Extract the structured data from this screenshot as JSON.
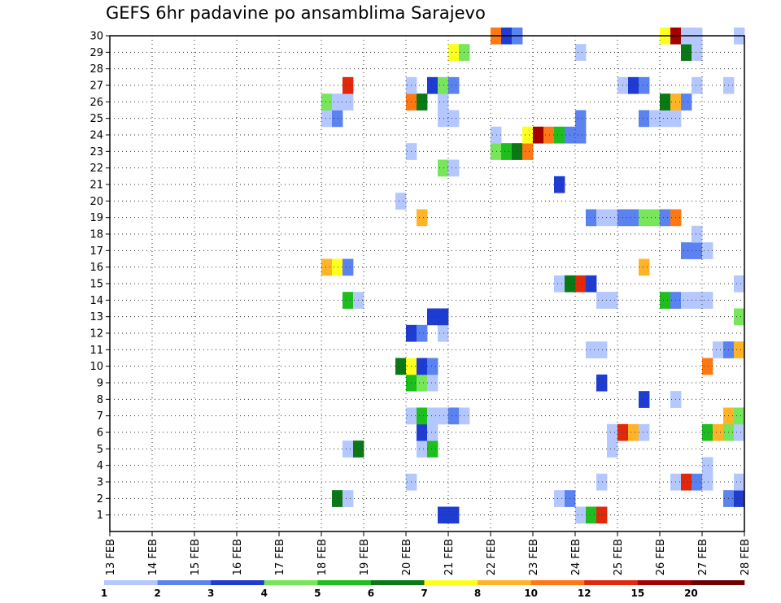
{
  "chart_data": {
    "type": "heatmap",
    "title": "GEFS 6hr padavine po ansamblima Sarajevo",
    "xlabel": "",
    "ylabel": "",
    "x_ticks": [
      "13 FEB",
      "14 FEB",
      "15 FEB",
      "16 FEB",
      "17 FEB",
      "18 FEB",
      "19 FEB",
      "20 FEB",
      "21 FEB",
      "22 FEB",
      "23 FEB",
      "24 FEB",
      "25 FEB",
      "26 FEB",
      "27 FEB",
      "28 FEB"
    ],
    "y_ticks": [
      "1",
      "2",
      "3",
      "4",
      "5",
      "6",
      "7",
      "8",
      "9",
      "10",
      "11",
      "12",
      "13",
      "14",
      "15",
      "16",
      "17",
      "18",
      "19",
      "20",
      "21",
      "22",
      "23",
      "24",
      "25",
      "26",
      "27",
      "28",
      "29",
      "30"
    ],
    "x_range": [
      "13 FEB 00UTC",
      "28 FEB 00UTC"
    ],
    "y_range": [
      0,
      30
    ],
    "time_step_hours": 6,
    "grid": "dotted",
    "colorbar": {
      "placement": "bottom",
      "labels": [
        "1",
        "2",
        "3",
        "4",
        "5",
        "6",
        "7",
        "8",
        "10",
        "12",
        "15",
        "20"
      ],
      "colors": [
        "#b4c8ff",
        "#5a82f0",
        "#1e3cd2",
        "#78e65a",
        "#1ebe1e",
        "#0a7814",
        "#ffff1e",
        "#ffb428",
        "#ff7814",
        "#e1280a",
        "#a50000",
        "#6e0000"
      ]
    },
    "cells": [
      [
        20.75,
        0,
        "#1e3cd2"
      ],
      [
        21.0,
        0,
        "#1e3cd2"
      ],
      [
        24.0,
        0,
        "#b4c8ff"
      ],
      [
        24.25,
        0,
        "#1ebe1e"
      ],
      [
        24.5,
        0,
        "#e1280a"
      ],
      [
        18.25,
        1,
        "#0a7814"
      ],
      [
        18.5,
        1,
        "#b4c8ff"
      ],
      [
        23.5,
        1,
        "#b4c8ff"
      ],
      [
        23.75,
        1,
        "#5a82f0"
      ],
      [
        27.5,
        1,
        "#5a82f0"
      ],
      [
        27.75,
        1,
        "#1e3cd2"
      ],
      [
        20.0,
        2,
        "#b4c8ff"
      ],
      [
        24.5,
        2,
        "#b4c8ff"
      ],
      [
        26.25,
        2,
        "#b4c8ff"
      ],
      [
        26.5,
        2,
        "#e1280a"
      ],
      [
        26.75,
        2,
        "#5a82f0"
      ],
      [
        27.0,
        2,
        "#b4c8ff"
      ],
      [
        27.75,
        2,
        "#b4c8ff"
      ],
      [
        27.0,
        3,
        "#b4c8ff"
      ],
      [
        18.5,
        4,
        "#b4c8ff"
      ],
      [
        18.75,
        4,
        "#0a7814"
      ],
      [
        20.25,
        4,
        "#b4c8ff"
      ],
      [
        20.5,
        4,
        "#1ebe1e"
      ],
      [
        24.75,
        4,
        "#b4c8ff"
      ],
      [
        20.25,
        5,
        "#1e3cd2"
      ],
      [
        20.5,
        5,
        "#b4c8ff"
      ],
      [
        24.75,
        5,
        "#b4c8ff"
      ],
      [
        25.0,
        5,
        "#e1280a"
      ],
      [
        25.25,
        5,
        "#ffb428"
      ],
      [
        25.5,
        5,
        "#b4c8ff"
      ],
      [
        27.0,
        5,
        "#1ebe1e"
      ],
      [
        27.25,
        5,
        "#ffb428"
      ],
      [
        27.5,
        5,
        "#78e65a"
      ],
      [
        27.75,
        5,
        "#b4c8ff"
      ],
      [
        20.0,
        6,
        "#b4c8ff"
      ],
      [
        20.25,
        6,
        "#1ebe1e"
      ],
      [
        20.5,
        6,
        "#b4c8ff"
      ],
      [
        20.75,
        6,
        "#b4c8ff"
      ],
      [
        21.0,
        6,
        "#5a82f0"
      ],
      [
        21.25,
        6,
        "#b4c8ff"
      ],
      [
        27.5,
        6,
        "#ffb428"
      ],
      [
        27.75,
        6,
        "#78e65a"
      ],
      [
        25.5,
        7,
        "#1e3cd2"
      ],
      [
        26.25,
        7,
        "#b4c8ff"
      ],
      [
        20.0,
        8,
        "#1ebe1e"
      ],
      [
        20.25,
        8,
        "#78e65a"
      ],
      [
        20.5,
        8,
        "#b4c8ff"
      ],
      [
        24.5,
        8,
        "#1e3cd2"
      ],
      [
        19.75,
        9,
        "#0a7814"
      ],
      [
        20.0,
        9,
        "#ffff1e"
      ],
      [
        20.25,
        9,
        "#1e3cd2"
      ],
      [
        20.5,
        9,
        "#5a82f0"
      ],
      [
        27.0,
        9,
        "#ff7814"
      ],
      [
        24.25,
        10,
        "#b4c8ff"
      ],
      [
        24.5,
        10,
        "#b4c8ff"
      ],
      [
        27.25,
        10,
        "#b4c8ff"
      ],
      [
        27.5,
        10,
        "#5a82f0"
      ],
      [
        27.75,
        10,
        "#ffb428"
      ],
      [
        20.0,
        11,
        "#1e3cd2"
      ],
      [
        20.25,
        11,
        "#5a82f0"
      ],
      [
        20.75,
        11,
        "#b4c8ff"
      ],
      [
        20.5,
        12,
        "#1e3cd2"
      ],
      [
        20.75,
        12,
        "#1e3cd2"
      ],
      [
        27.75,
        12,
        "#78e65a"
      ],
      [
        18.5,
        13,
        "#1ebe1e"
      ],
      [
        18.75,
        13,
        "#b4c8ff"
      ],
      [
        24.5,
        13,
        "#b4c8ff"
      ],
      [
        24.75,
        13,
        "#b4c8ff"
      ],
      [
        26.0,
        13,
        "#1ebe1e"
      ],
      [
        26.25,
        13,
        "#5a82f0"
      ],
      [
        26.5,
        13,
        "#b4c8ff"
      ],
      [
        26.75,
        13,
        "#b4c8ff"
      ],
      [
        27.0,
        13,
        "#b4c8ff"
      ],
      [
        23.5,
        14,
        "#b4c8ff"
      ],
      [
        23.75,
        14,
        "#0a7814"
      ],
      [
        24.0,
        14,
        "#e1280a"
      ],
      [
        24.25,
        14,
        "#1e3cd2"
      ],
      [
        27.75,
        14,
        "#b4c8ff"
      ],
      [
        18.0,
        15,
        "#ffb428"
      ],
      [
        18.25,
        15,
        "#ffff1e"
      ],
      [
        18.5,
        15,
        "#5a82f0"
      ],
      [
        25.5,
        15,
        "#ffb428"
      ],
      [
        26.5,
        16,
        "#5a82f0"
      ],
      [
        26.75,
        16,
        "#5a82f0"
      ],
      [
        27.0,
        16,
        "#b4c8ff"
      ],
      [
        26.75,
        17,
        "#b4c8ff"
      ],
      [
        20.25,
        18,
        "#ffb428"
      ],
      [
        24.25,
        18,
        "#5a82f0"
      ],
      [
        24.5,
        18,
        "#b4c8ff"
      ],
      [
        24.75,
        18,
        "#b4c8ff"
      ],
      [
        25.0,
        18,
        "#5a82f0"
      ],
      [
        25.25,
        18,
        "#5a82f0"
      ],
      [
        25.5,
        18,
        "#78e65a"
      ],
      [
        25.75,
        18,
        "#78e65a"
      ],
      [
        26.0,
        18,
        "#5a82f0"
      ],
      [
        26.25,
        18,
        "#ff7814"
      ],
      [
        19.75,
        19,
        "#b4c8ff"
      ],
      [
        23.5,
        20,
        "#1e3cd2"
      ],
      [
        20.75,
        21,
        "#78e65a"
      ],
      [
        21.0,
        21,
        "#b4c8ff"
      ],
      [
        20.0,
        22,
        "#b4c8ff"
      ],
      [
        22.0,
        22,
        "#78e65a"
      ],
      [
        22.25,
        22,
        "#1ebe1e"
      ],
      [
        22.5,
        22,
        "#0a7814"
      ],
      [
        22.75,
        22,
        "#ff7814"
      ],
      [
        22.0,
        23,
        "#b4c8ff"
      ],
      [
        22.75,
        23,
        "#ffff1e"
      ],
      [
        23.0,
        23,
        "#a50000"
      ],
      [
        23.25,
        23,
        "#ff7814"
      ],
      [
        23.5,
        23,
        "#1ebe1e"
      ],
      [
        23.75,
        23,
        "#5a82f0"
      ],
      [
        24.0,
        23,
        "#5a82f0"
      ],
      [
        18.0,
        24,
        "#b4c8ff"
      ],
      [
        18.25,
        24,
        "#5a82f0"
      ],
      [
        20.75,
        24,
        "#b4c8ff"
      ],
      [
        21.0,
        24,
        "#b4c8ff"
      ],
      [
        24.0,
        24,
        "#5a82f0"
      ],
      [
        25.5,
        24,
        "#5a82f0"
      ],
      [
        25.75,
        24,
        "#b4c8ff"
      ],
      [
        26.0,
        24,
        "#b4c8ff"
      ],
      [
        26.25,
        24,
        "#b4c8ff"
      ],
      [
        18.0,
        25,
        "#78e65a"
      ],
      [
        18.25,
        25,
        "#b4c8ff"
      ],
      [
        18.5,
        25,
        "#b4c8ff"
      ],
      [
        20.0,
        25,
        "#ff7814"
      ],
      [
        20.25,
        25,
        "#0a7814"
      ],
      [
        20.75,
        25,
        "#b4c8ff"
      ],
      [
        26.0,
        25,
        "#0a7814"
      ],
      [
        26.25,
        25,
        "#ffb428"
      ],
      [
        26.5,
        25,
        "#5a82f0"
      ],
      [
        18.5,
        26,
        "#e1280a"
      ],
      [
        20.0,
        26,
        "#b4c8ff"
      ],
      [
        20.5,
        26,
        "#1e3cd2"
      ],
      [
        20.75,
        26,
        "#78e65a"
      ],
      [
        21.0,
        26,
        "#5a82f0"
      ],
      [
        25.0,
        26,
        "#b4c8ff"
      ],
      [
        25.25,
        26,
        "#1e3cd2"
      ],
      [
        25.5,
        26,
        "#5a82f0"
      ],
      [
        26.75,
        26,
        "#b4c8ff"
      ],
      [
        27.5,
        26,
        "#b4c8ff"
      ],
      [
        21.0,
        28,
        "#ffff1e"
      ],
      [
        21.25,
        28,
        "#78e65a"
      ],
      [
        24.0,
        28,
        "#b4c8ff"
      ],
      [
        26.5,
        28,
        "#0a7814"
      ],
      [
        26.75,
        28,
        "#b4c8ff"
      ],
      [
        22.0,
        29,
        "#ff7814"
      ],
      [
        22.25,
        29,
        "#1e3cd2"
      ],
      [
        22.5,
        29,
        "#5a82f0"
      ],
      [
        26.0,
        29,
        "#ffff1e"
      ],
      [
        26.25,
        29,
        "#a50000"
      ],
      [
        26.5,
        29,
        "#b4c8ff"
      ],
      [
        26.75,
        29,
        "#b4c8ff"
      ],
      [
        27.75,
        29,
        "#b4c8ff"
      ]
    ]
  }
}
